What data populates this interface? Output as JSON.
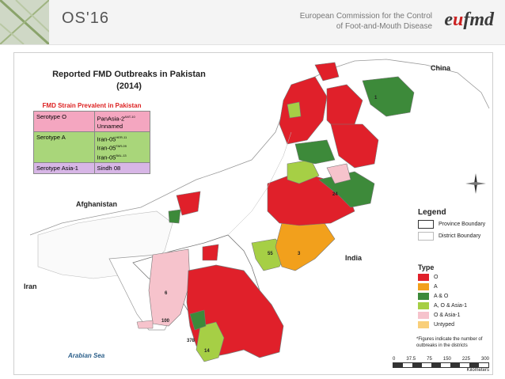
{
  "header": {
    "conference": "OS'16",
    "org_line1": "European Commission for the Control",
    "org_line2": "of Foot-and-Mouth Disease",
    "logo_part1": "e",
    "logo_o": "u",
    "logo_part2": "fmd"
  },
  "map": {
    "title_line1": "Reported FMD Outbreaks in Pakistan",
    "title_line2": "(2014)",
    "countries": [
      "China",
      "Afghanistan",
      "India",
      "Iran"
    ],
    "sea": "Arabian Sea",
    "district_numbers": [
      "6",
      "100",
      "378",
      "14",
      "3",
      "55",
      "24",
      "1"
    ]
  },
  "strains": {
    "title": "FMD Strain Prevalent in Pakistan",
    "rows": [
      {
        "serotype": "Serotype O",
        "strains": [
          "PanAsia-2",
          "Unnamed"
        ],
        "sup": [
          "ANT-10",
          ""
        ]
      },
      {
        "serotype": "Serotype A",
        "strains": [
          "Iran-05",
          "Iran-05",
          "Iran-05"
        ],
        "sup": [
          "HER-11",
          "FAR-09",
          "BAL-13"
        ]
      },
      {
        "serotype": "Serotype Asia-1",
        "strains": [
          "Sindh 08"
        ],
        "sup": [
          ""
        ]
      }
    ]
  },
  "legend": {
    "title": "Legend",
    "items": [
      "Province Boundary",
      "District Boundary"
    ]
  },
  "types": {
    "title": "Type",
    "items": [
      {
        "label": "O",
        "color": "#e0202a"
      },
      {
        "label": "A",
        "color": "#f2a01c"
      },
      {
        "label": "A & O",
        "color": "#3d8a3a"
      },
      {
        "label": "A, O & Asia-1",
        "color": "#a6cf45"
      },
      {
        "label": "O & Asia-1",
        "color": "#f6c3cc"
      },
      {
        "label": "Untyped",
        "color": "#f9cf7a"
      }
    ]
  },
  "note": "*Figures indicate the number of outbreaks in the districts",
  "scale": {
    "ticks": [
      "0",
      "37.5",
      "75",
      "150",
      "225",
      "300"
    ],
    "unit": "Kilometers"
  }
}
